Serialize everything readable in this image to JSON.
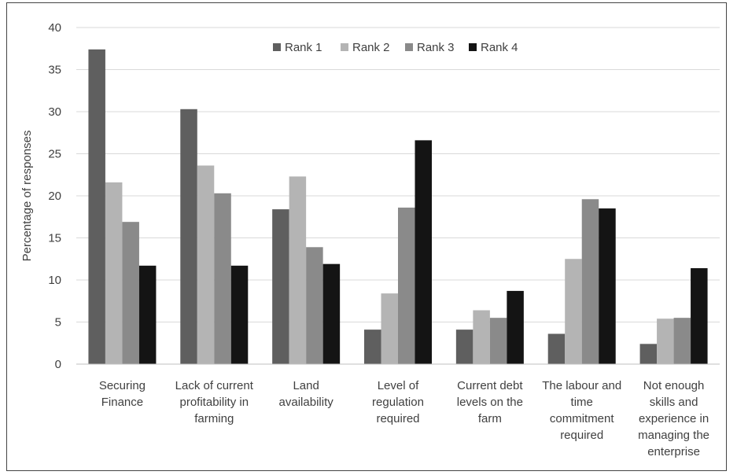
{
  "chart_data": {
    "type": "bar",
    "title": "",
    "ylabel": "Percentage of responses",
    "xlabel": "",
    "ylim": [
      0,
      40
    ],
    "yticks": [
      0,
      5,
      10,
      15,
      20,
      25,
      30,
      35,
      40
    ],
    "grid": true,
    "legend_position": "top-center",
    "categories": [
      [
        "Securing",
        "Finance"
      ],
      [
        "Lack of current",
        "profitability in",
        "farming"
      ],
      [
        "Land",
        "availability"
      ],
      [
        "Level of",
        "regulation",
        "required"
      ],
      [
        "Current debt",
        "levels on the",
        "farm"
      ],
      [
        "The labour and",
        "time",
        "commitment",
        "required"
      ],
      [
        "Not enough",
        "skills and",
        "experience in",
        "managing the",
        "enterprise"
      ]
    ],
    "series": [
      {
        "name": "Rank 1",
        "color": "#5f5f5f",
        "values": [
          37.4,
          30.3,
          18.4,
          4.1,
          4.1,
          3.6,
          2.4
        ]
      },
      {
        "name": "Rank 2",
        "color": "#b4b4b4",
        "values": [
          21.6,
          23.6,
          22.3,
          8.4,
          6.4,
          12.5,
          5.4
        ]
      },
      {
        "name": "Rank 3",
        "color": "#8a8a8a",
        "values": [
          16.9,
          20.3,
          13.9,
          18.6,
          5.5,
          19.6,
          5.5
        ]
      },
      {
        "name": "Rank 4",
        "color": "#141414",
        "values": [
          11.7,
          11.7,
          11.9,
          26.6,
          8.7,
          18.5,
          11.4
        ]
      }
    ],
    "colors": {
      "grid": "#d9d9d9",
      "axis": "#bfbfbf",
      "text": "#404040"
    }
  }
}
